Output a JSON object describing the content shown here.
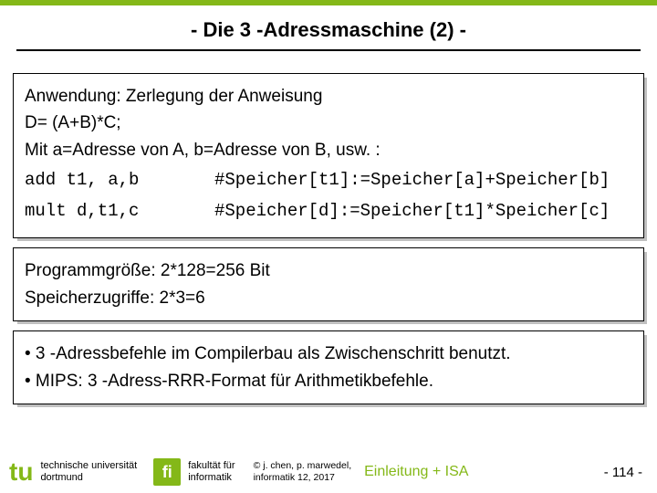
{
  "colors": {
    "accent": "#84b818",
    "text": "#000000",
    "shadow": "#c0c0c0",
    "bg": "#ffffff"
  },
  "title": "- Die 3 -Adressmaschine (2) -",
  "box1": {
    "line1": "Anwendung: Zerlegung der Anweisung",
    "line2": "D= (A+B)*C;",
    "line3": "Mit a=Adresse von A, b=Adresse von B, usw. :",
    "instr1": "add t1, a,b",
    "comment1": "#Speicher[t1]:=Speicher[a]+Speicher[b]",
    "instr2": "mult d,t1,c",
    "comment2": "#Speicher[d]:=Speicher[t1]*Speicher[c]"
  },
  "box2": {
    "line1": "Programmgröße: 2*128=256 Bit",
    "line2": "Speicherzugriffe: 2*3=6"
  },
  "box3": {
    "bullet1": "• 3 -Adressbefehle im Compilerbau als Zwischenschritt benutzt.",
    "bullet2": "• MIPS: 3 -Adress-RRR-Format für Arithmetikbefehle."
  },
  "footer": {
    "tu_glyph": "tu",
    "uni_line1": "technische universität",
    "uni_line2": "dortmund",
    "fi_glyph": "fi",
    "fak_line1": "fakultät für",
    "fak_line2": "informatik",
    "copy_line1": "© j. chen, p. marwedel,",
    "copy_line2": "informatik 12,  2017",
    "section": "Einleitung + ISA",
    "page": "-  114 -"
  }
}
